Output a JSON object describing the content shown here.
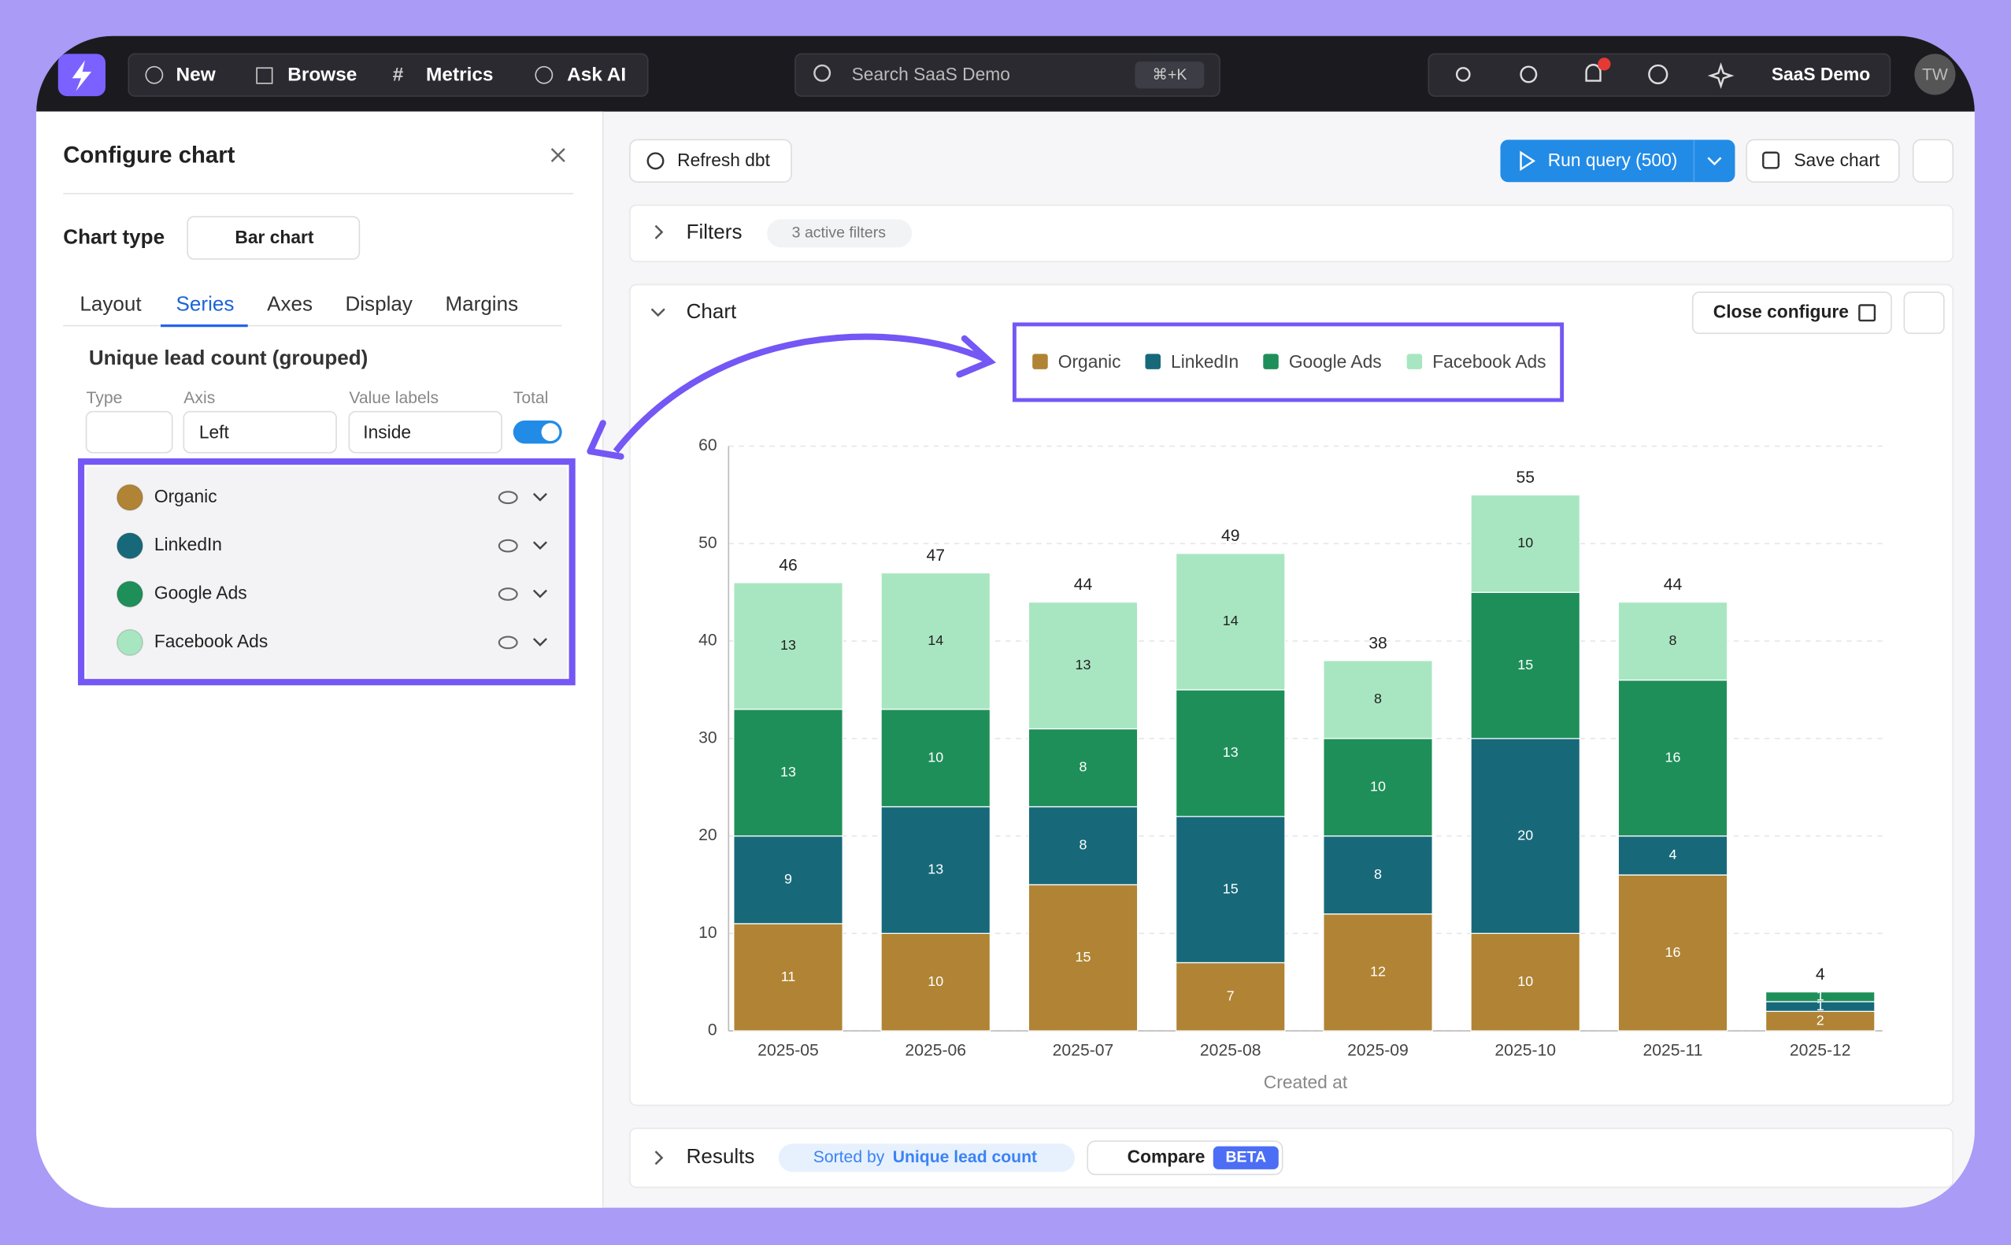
{
  "ui": {
    "nav": {
      "new": "New",
      "browse": "Browse",
      "metrics": "Metrics",
      "ask_ai": "Ask AI",
      "search": "Search SaaS Demo",
      "shortcut": "⌘+K",
      "project": "SaaS Demo",
      "avatar": "TW"
    },
    "panel": {
      "title": "Configure chart",
      "chart_type_label": "Chart type",
      "chart_type": "Bar chart",
      "tabs": [
        "Layout",
        "Series",
        "Axes",
        "Display",
        "Margins"
      ],
      "group": "Unique lead count (grouped)",
      "columns": [
        "Type",
        "Axis",
        "Value labels",
        "Total"
      ],
      "axis": "Left",
      "value_labels": "Inside"
    },
    "toolbar": {
      "refresh": "Refresh dbt",
      "run": "Run query (500)",
      "save": "Save chart"
    },
    "filters": {
      "title": "Filters",
      "badge": "3 active filters"
    },
    "chart_card": {
      "title": "Chart",
      "close": "Close configure"
    },
    "results": {
      "title": "Results",
      "sorted_prefix": "Sorted by",
      "sorted_field": "Unique lead count",
      "compare": "Compare",
      "beta": "BETA"
    }
  },
  "chart_data": {
    "type": "stacked_bar",
    "x_label": "Created at",
    "categories": [
      "2025-05",
      "2025-06",
      "2025-07",
      "2025-08",
      "2025-09",
      "2025-10",
      "2025-11",
      "2025-12"
    ],
    "series": [
      {
        "name": "Organic",
        "color": "#b08434",
        "values": [
          11,
          10,
          15,
          7,
          12,
          10,
          16,
          2
        ]
      },
      {
        "name": "LinkedIn",
        "color": "#17697a",
        "values": [
          9,
          13,
          8,
          15,
          8,
          20,
          4,
          1
        ]
      },
      {
        "name": "Google Ads",
        "color": "#1f8f5a",
        "values": [
          13,
          10,
          8,
          13,
          10,
          15,
          16,
          1
        ]
      },
      {
        "name": "Facebook Ads",
        "color": "#a8e6c1",
        "values": [
          13,
          14,
          13,
          14,
          8,
          10,
          8,
          0
        ]
      }
    ],
    "totals": [
      46,
      47,
      44,
      49,
      38,
      55,
      44,
      4
    ],
    "ylim": [
      0,
      60
    ],
    "yticks": [
      0,
      10,
      20,
      30,
      40,
      50,
      60
    ],
    "grid": true,
    "legend": "top"
  }
}
